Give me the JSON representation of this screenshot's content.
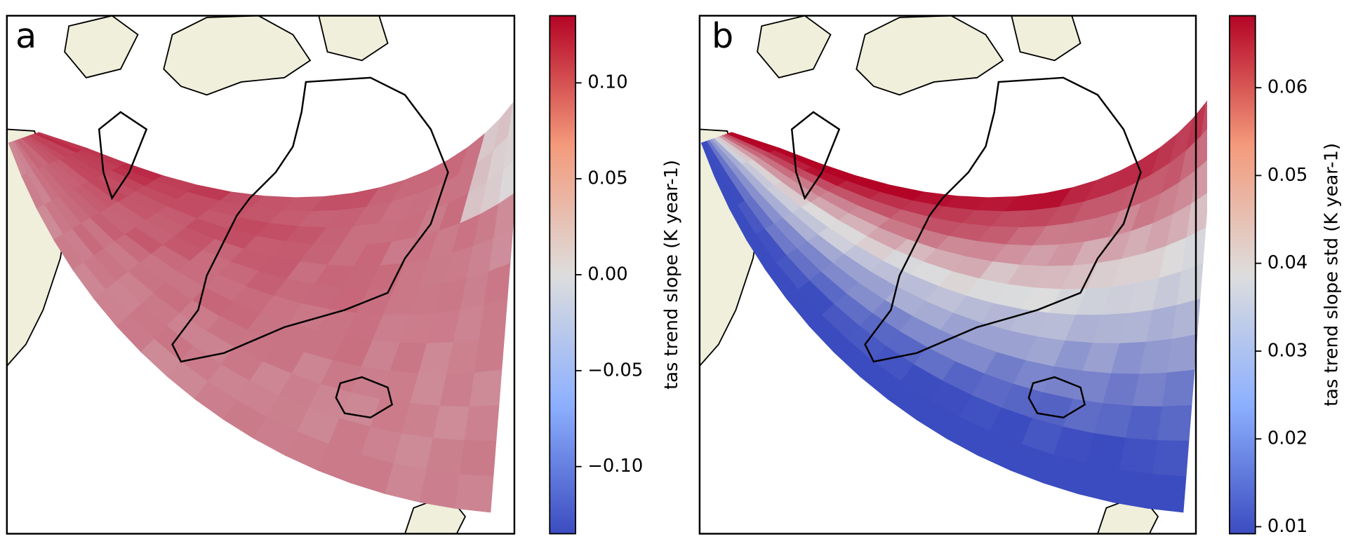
{
  "panels": [
    {
      "label": "a",
      "colorbar": {
        "label": "tas trend slope (K year-1)",
        "ylim": [
          -0.135,
          0.135
        ],
        "yticks": [
          {
            "value": 0.1,
            "label": "0.10"
          },
          0.05,
          {
            "value": 0,
            "label": "0.00"
          },
          {
            "value": -0.05,
            "label": "−0.05"
          },
          {
            "value": -0.1,
            "label": "−0.10"
          }
        ]
      }
    },
    {
      "label": "b",
      "colorbar": {
        "label": "tas trend slope std (K year-1)",
        "ylim": [
          0.0092,
          0.0682
        ],
        "yticks": [
          0.06,
          0.05,
          0.04,
          0.03,
          0.02,
          0.01
        ]
      }
    }
  ]
}
